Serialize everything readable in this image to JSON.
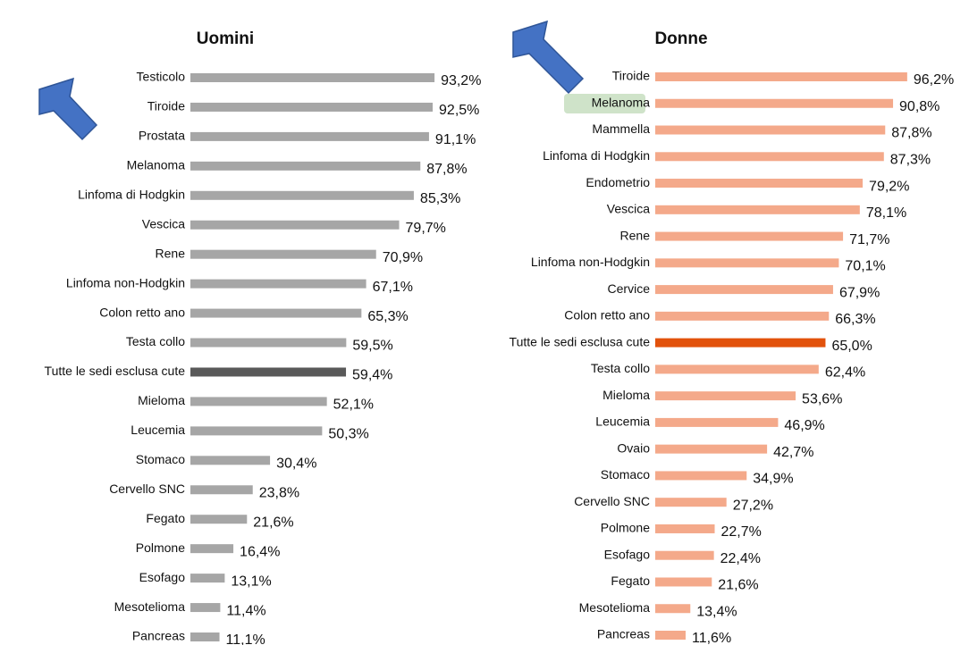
{
  "chart_data": [
    {
      "type": "barh",
      "title": "Uomini",
      "categories": [
        "Testicolo",
        "Tiroide",
        "Prostata",
        "Melanoma",
        "Linfoma di Hodgkin",
        "Vescica",
        "Rene",
        "Linfoma non-Hodgkin",
        "Colon retto ano",
        "Testa collo",
        "Tutte le sedi esclusa cute",
        "Mieloma",
        "Leucemia",
        "Stomaco",
        "Cervello SNC",
        "Fegato",
        "Polmone",
        "Esofago",
        "Mesotelioma",
        "Pancreas"
      ],
      "values": [
        93.2,
        92.5,
        91.1,
        87.8,
        85.3,
        79.7,
        70.9,
        67.1,
        65.3,
        59.5,
        59.4,
        52.1,
        50.3,
        30.4,
        23.8,
        21.6,
        16.4,
        13.1,
        11.4,
        11.1
      ],
      "value_labels": [
        "93,2%",
        "92,5%",
        "91,1%",
        "87,8%",
        "85,3%",
        "79,7%",
        "70,9%",
        "67,1%",
        "65,3%",
        "59,5%",
        "59,4%",
        "52,1%",
        "50,3%",
        "30,4%",
        "23,8%",
        "21,6%",
        "16,4%",
        "13,1%",
        "11,4%",
        "11,1%"
      ],
      "colors": [
        "#a6a6a6",
        "#a6a6a6",
        "#a6a6a6",
        "#a6a6a6",
        "#a6a6a6",
        "#a6a6a6",
        "#a6a6a6",
        "#a6a6a6",
        "#a6a6a6",
        "#a6a6a6",
        "#595959",
        "#a6a6a6",
        "#a6a6a6",
        "#a6a6a6",
        "#a6a6a6",
        "#a6a6a6",
        "#a6a6a6",
        "#a6a6a6",
        "#a6a6a6",
        "#a6a6a6"
      ],
      "xlim": [
        0,
        100
      ]
    },
    {
      "type": "barh",
      "title": "Donne",
      "categories": [
        "Tiroide",
        "Melanoma",
        "Mammella",
        "Linfoma di Hodgkin",
        "Endometrio",
        "Vescica",
        "Rene",
        "Linfoma non-Hodgkin",
        "Cervice",
        "Colon retto ano",
        "Tutte le sedi esclusa cute",
        "Testa collo",
        "Mieloma",
        "Leucemia",
        "Ovaio",
        "Stomaco",
        "Cervello SNC",
        "Polmone",
        "Esofago",
        "Fegato",
        "Mesotelioma",
        "Pancreas"
      ],
      "values": [
        96.2,
        90.8,
        87.8,
        87.3,
        79.2,
        78.1,
        71.7,
        70.1,
        67.9,
        66.3,
        65.0,
        62.4,
        53.6,
        46.9,
        42.7,
        34.9,
        27.2,
        22.7,
        22.4,
        21.6,
        13.4,
        11.6
      ],
      "value_labels": [
        "96,2%",
        "90,8%",
        "87,8%",
        "87,3%",
        "79,2%",
        "78,1%",
        "71,7%",
        "70,1%",
        "67,9%",
        "66,3%",
        "65,0%",
        "62,4%",
        "53,6%",
        "46,9%",
        "42,7%",
        "34,9%",
        "27,2%",
        "22,7%",
        "22,4%",
        "21,6%",
        "13,4%",
        "11,6%"
      ],
      "colors": [
        "#f4a98a",
        "#f4a98a",
        "#f4a98a",
        "#f4a98a",
        "#f4a98a",
        "#f4a98a",
        "#f4a98a",
        "#f4a98a",
        "#f4a98a",
        "#f4a98a",
        "#e2520c",
        "#f4a98a",
        "#f4a98a",
        "#f4a98a",
        "#f4a98a",
        "#f4a98a",
        "#f4a98a",
        "#f4a98a",
        "#f4a98a",
        "#f4a98a",
        "#f4a98a",
        "#f4a98a"
      ],
      "xlim": [
        0,
        100
      ]
    }
  ]
}
